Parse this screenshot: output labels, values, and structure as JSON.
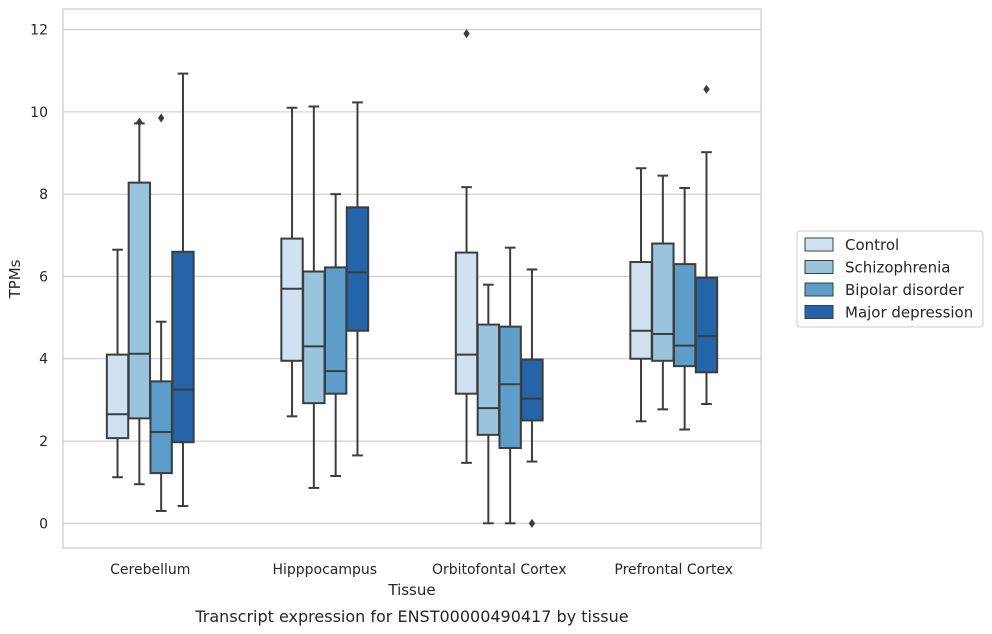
{
  "chart_data": {
    "type": "boxplot",
    "title": "",
    "caption": "Transcript expression for ENST00000490417 by tissue",
    "xlabel": "Tissue",
    "ylabel": "TPMs",
    "ylim": [
      -0.6,
      12.5
    ],
    "yticks": [
      0,
      2,
      4,
      6,
      8,
      10,
      12
    ],
    "grid": "horizontal",
    "legend_position": "right",
    "categories": [
      "Cerebellum",
      "Hipppocampus",
      "Orbitofontal Cortex",
      "Prefrontal Cortex"
    ],
    "series": [
      {
        "name": "Control",
        "color": "#d0e1f2",
        "boxes": [
          {
            "whislo": 1.12,
            "q1": 2.07,
            "med": 2.65,
            "q3": 4.1,
            "whishi": 6.65,
            "fliers": []
          },
          {
            "whislo": 2.6,
            "q1": 3.95,
            "med": 5.7,
            "q3": 6.92,
            "whishi": 10.1,
            "fliers": []
          },
          {
            "whislo": 1.47,
            "q1": 3.15,
            "med": 4.1,
            "q3": 6.58,
            "whishi": 8.17,
            "fliers": [
              11.9
            ]
          },
          {
            "whislo": 2.48,
            "q1": 4.0,
            "med": 4.68,
            "q3": 6.35,
            "whishi": 8.63,
            "fliers": []
          }
        ]
      },
      {
        "name": "Schizophrenia",
        "color": "#9ac3dd",
        "boxes": [
          {
            "whislo": 0.95,
            "q1": 2.55,
            "med": 4.12,
            "q3": 8.28,
            "whishi": 9.72,
            "fliers": [
              9.75
            ]
          },
          {
            "whislo": 0.86,
            "q1": 2.92,
            "med": 4.3,
            "q3": 6.12,
            "whishi": 10.13,
            "fliers": []
          },
          {
            "whislo": 0.0,
            "q1": 2.15,
            "med": 2.8,
            "q3": 4.83,
            "whishi": 5.8,
            "fliers": []
          },
          {
            "whislo": 2.77,
            "q1": 3.95,
            "med": 4.6,
            "q3": 6.8,
            "whishi": 8.45,
            "fliers": []
          }
        ]
      },
      {
        "name": "Bipolar disorder",
        "color": "#5c9ec9",
        "boxes": [
          {
            "whislo": 0.3,
            "q1": 1.22,
            "med": 2.22,
            "q3": 3.45,
            "whishi": 4.9,
            "fliers": [
              9.85
            ]
          },
          {
            "whislo": 1.15,
            "q1": 3.15,
            "med": 3.7,
            "q3": 6.22,
            "whishi": 8.0,
            "fliers": []
          },
          {
            "whislo": 0.0,
            "q1": 1.83,
            "med": 3.38,
            "q3": 4.78,
            "whishi": 6.7,
            "fliers": []
          },
          {
            "whislo": 2.28,
            "q1": 3.82,
            "med": 4.32,
            "q3": 6.3,
            "whishi": 8.15,
            "fliers": []
          }
        ]
      },
      {
        "name": "Major depression",
        "color": "#2365a8",
        "boxes": [
          {
            "whislo": 0.42,
            "q1": 1.97,
            "med": 3.25,
            "q3": 6.6,
            "whishi": 10.93,
            "fliers": []
          },
          {
            "whislo": 1.65,
            "q1": 4.68,
            "med": 6.1,
            "q3": 7.68,
            "whishi": 10.23,
            "fliers": []
          },
          {
            "whislo": 1.5,
            "q1": 2.5,
            "med": 3.03,
            "q3": 3.98,
            "whishi": 6.17,
            "fliers": [
              0.0
            ]
          },
          {
            "whislo": 2.9,
            "q1": 3.67,
            "med": 4.55,
            "q3": 5.97,
            "whishi": 9.02,
            "fliers": [
              10.55
            ]
          }
        ]
      }
    ]
  }
}
